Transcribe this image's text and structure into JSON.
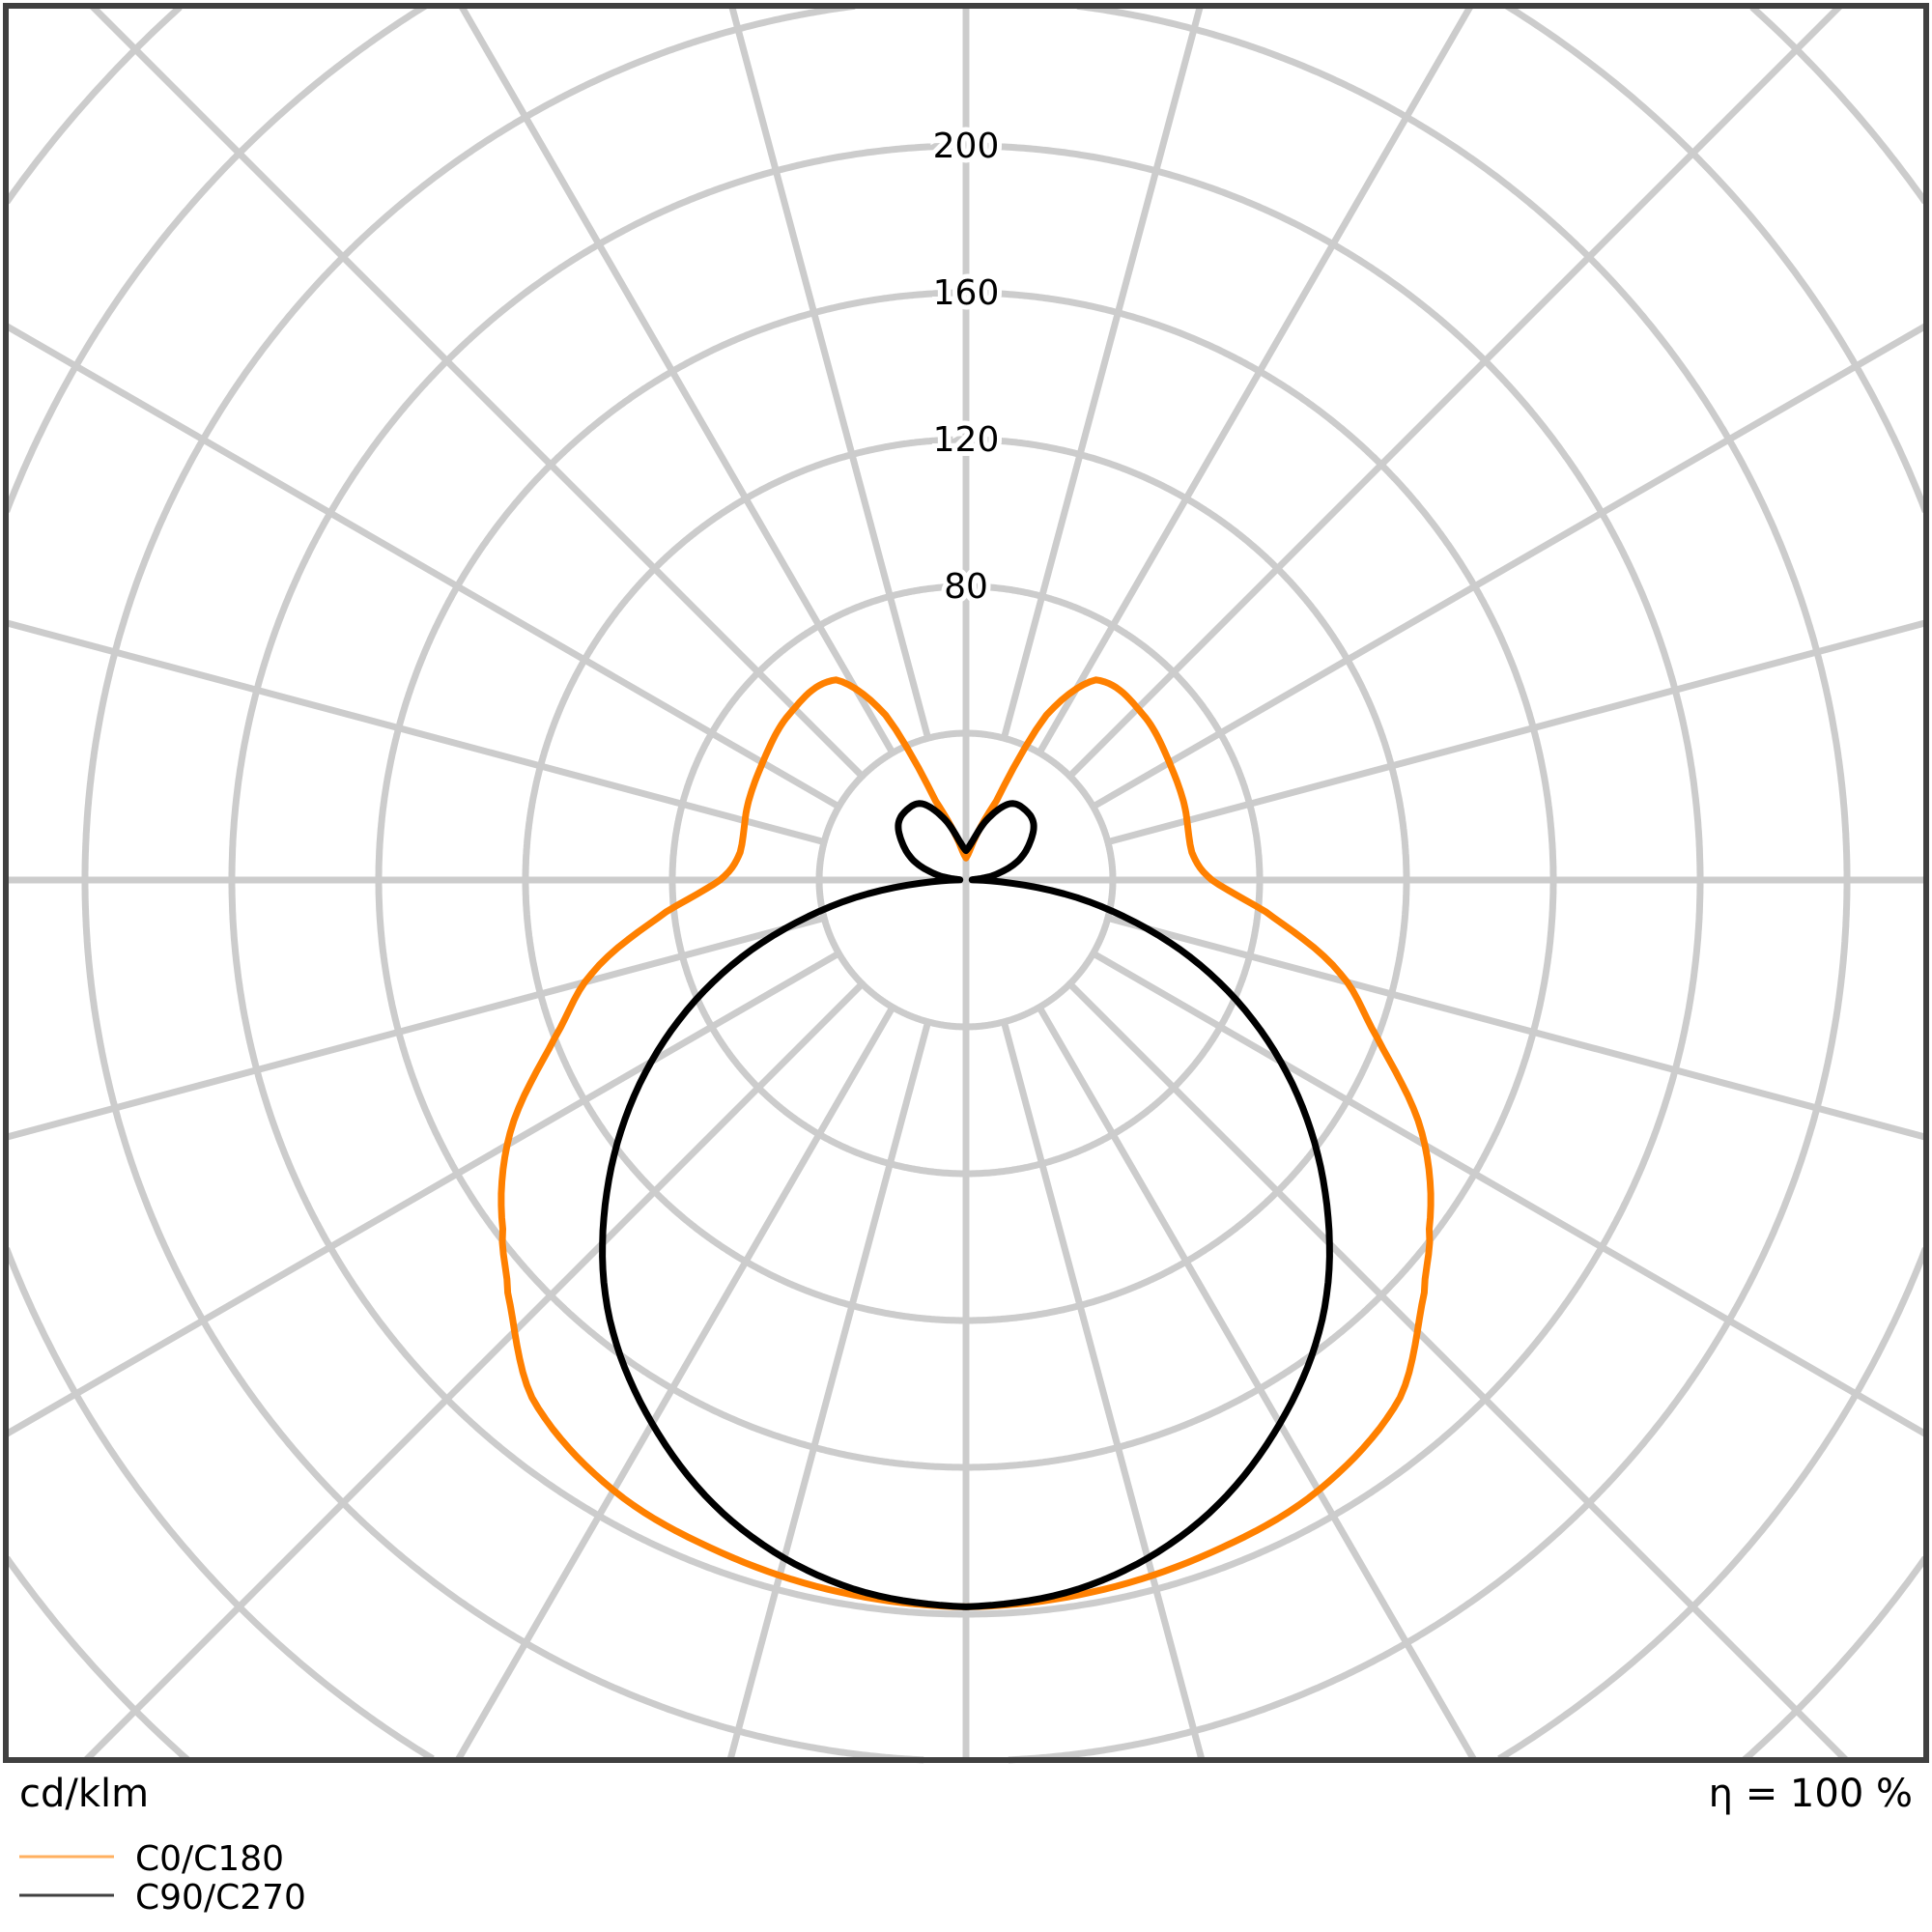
{
  "chart_data": {
    "type": "polar",
    "unit_label": "cd/klm",
    "efficiency_label": "η = 100 %",
    "radial_ticks": [
      80,
      120,
      160,
      200
    ],
    "ring_step": 40,
    "angle_step_deg": 15,
    "grid": true,
    "legend_placement": "bottom-left",
    "series": [
      {
        "name": "C0/C180",
        "color": "#ff8000",
        "angles_deg": [
          0,
          10,
          20,
          30,
          40,
          48,
          53,
          61,
          69,
          76,
          84,
          90,
          97,
          110,
          120,
          133,
          147,
          154,
          159,
          170,
          180
        ],
        "values": [
          198,
          197,
          195,
          192,
          184,
          168,
          158,
          142,
          120,
          105,
          82,
          67,
          62,
          63,
          64,
          66,
          65,
          50,
          23,
          10,
          6
        ]
      },
      {
        "name": "C90/C270",
        "color": "#000000",
        "angles_deg": [
          0,
          10,
          20,
          30,
          40,
          50,
          60,
          70,
          80,
          90,
          100,
          110,
          120,
          130,
          140,
          150,
          160,
          170,
          180
        ],
        "values": [
          198,
          195,
          186,
          171,
          152,
          127,
          99,
          68,
          34,
          3,
          8,
          15,
          20,
          24,
          25,
          24,
          18,
          11,
          8
        ]
      }
    ]
  }
}
